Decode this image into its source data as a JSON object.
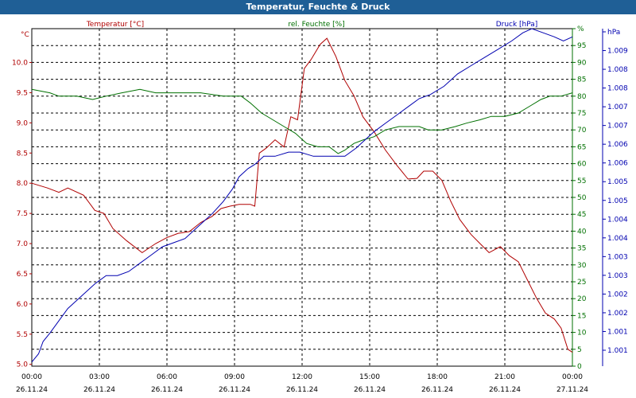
{
  "title": "Temperatur, Feuchte & Druck",
  "colors": {
    "title_bg": "#1f5f96",
    "temperature": "#b00000",
    "humidity": "#007000",
    "pressure": "#0000b0"
  },
  "chart_data": {
    "type": "line",
    "title": "Temperatur, Feuchte & Druck",
    "legend": [
      "Temperatur [°C]",
      "rel. Feuchte [%]",
      "Druck [hPa]"
    ],
    "x_tick_times": [
      "00:00",
      "03:00",
      "06:00",
      "09:00",
      "12:00",
      "15:00",
      "18:00",
      "21:00",
      "00:00"
    ],
    "x_tick_dates": [
      "26.11.24",
      "26.11.24",
      "26.11.24",
      "26.11.24",
      "26.11.24",
      "26.11.24",
      "26.11.24",
      "26.11.24",
      "27.11.24"
    ],
    "x_range_hours": [
      0,
      24
    ],
    "axes": {
      "temperature": {
        "unit": "°C",
        "range": [
          4.97,
          10.56
        ],
        "ticks": [
          "5.0",
          "5.5",
          "6.0",
          "6.5",
          "7.0",
          "7.5",
          "8.0",
          "8.5",
          "9.0",
          "9.5",
          "10.0"
        ]
      },
      "humidity": {
        "unit": "%",
        "range": [
          0,
          100
        ],
        "ticks": [
          "0",
          "5",
          "10",
          "15",
          "20",
          "25",
          "30",
          "35",
          "40",
          "45",
          "50",
          "55",
          "60",
          "65",
          "70",
          "75",
          "80",
          "85",
          "90",
          "95",
          "%"
        ]
      },
      "pressure": {
        "unit": "hPa",
        "range": [
          1000.9,
          1009.1
        ],
        "ticks": [
          "1.001",
          "1.001",
          "1.002",
          "1.002",
          "1.003",
          "1.003",
          "1.004",
          "1.004",
          "1.005",
          "1.005",
          "1.006",
          "1.006",
          "1.007",
          "1.007",
          "1.008",
          "1.008",
          "1.009",
          "hPa"
        ]
      }
    },
    "series": [
      {
        "name": "Temperatur [°C]",
        "axis": "temperature",
        "points": [
          [
            0,
            8.0
          ],
          [
            0.7,
            7.92
          ],
          [
            1.2,
            7.85
          ],
          [
            1.6,
            7.92
          ],
          [
            2.3,
            7.8
          ],
          [
            2.8,
            7.55
          ],
          [
            3.2,
            7.5
          ],
          [
            3.6,
            7.25
          ],
          [
            4.2,
            7.05
          ],
          [
            4.9,
            6.85
          ],
          [
            5.5,
            7.0
          ],
          [
            6.0,
            7.1
          ],
          [
            6.5,
            7.17
          ],
          [
            7.0,
            7.2
          ],
          [
            7.5,
            7.35
          ],
          [
            8.0,
            7.45
          ],
          [
            8.4,
            7.58
          ],
          [
            8.8,
            7.62
          ],
          [
            9.2,
            7.65
          ],
          [
            9.7,
            7.65
          ],
          [
            9.9,
            7.62
          ],
          [
            10.1,
            8.5
          ],
          [
            10.4,
            8.58
          ],
          [
            10.8,
            8.72
          ],
          [
            11.2,
            8.6
          ],
          [
            11.5,
            9.1
          ],
          [
            11.8,
            9.05
          ],
          [
            12.1,
            9.9
          ],
          [
            12.4,
            10.05
          ],
          [
            12.8,
            10.3
          ],
          [
            13.1,
            10.4
          ],
          [
            13.5,
            10.1
          ],
          [
            13.9,
            9.7
          ],
          [
            14.3,
            9.45
          ],
          [
            14.7,
            9.1
          ],
          [
            15.2,
            8.85
          ],
          [
            15.7,
            8.55
          ],
          [
            16.2,
            8.3
          ],
          [
            16.7,
            8.07
          ],
          [
            17.1,
            8.08
          ],
          [
            17.4,
            8.2
          ],
          [
            17.8,
            8.2
          ],
          [
            18.2,
            8.05
          ],
          [
            18.6,
            7.7
          ],
          [
            19.0,
            7.4
          ],
          [
            19.5,
            7.15
          ],
          [
            19.9,
            7.0
          ],
          [
            20.3,
            6.85
          ],
          [
            20.8,
            6.95
          ],
          [
            21.2,
            6.8
          ],
          [
            21.6,
            6.7
          ],
          [
            22.0,
            6.4
          ],
          [
            22.4,
            6.1
          ],
          [
            22.8,
            5.85
          ],
          [
            23.2,
            5.75
          ],
          [
            23.5,
            5.6
          ],
          [
            23.8,
            5.25
          ],
          [
            24.0,
            5.2
          ]
        ]
      },
      {
        "name": "rel. Feuchte [%]",
        "axis": "humidity",
        "points": [
          [
            0,
            82
          ],
          [
            0.8,
            81
          ],
          [
            1.2,
            80
          ],
          [
            2.0,
            80
          ],
          [
            2.7,
            79
          ],
          [
            3.3,
            80
          ],
          [
            4.0,
            81
          ],
          [
            4.8,
            82
          ],
          [
            5.5,
            81
          ],
          [
            6.5,
            81
          ],
          [
            7.5,
            81
          ],
          [
            8.5,
            80
          ],
          [
            9.3,
            80
          ],
          [
            9.7,
            78
          ],
          [
            10.2,
            75
          ],
          [
            10.7,
            73
          ],
          [
            11.2,
            71
          ],
          [
            11.7,
            69
          ],
          [
            12.2,
            66
          ],
          [
            12.7,
            65
          ],
          [
            13.2,
            65
          ],
          [
            13.6,
            63
          ],
          [
            13.9,
            64
          ],
          [
            14.3,
            66
          ],
          [
            14.7,
            67
          ],
          [
            15.2,
            68
          ],
          [
            15.7,
            70
          ],
          [
            16.3,
            71
          ],
          [
            16.8,
            71
          ],
          [
            17.2,
            71
          ],
          [
            17.6,
            70
          ],
          [
            18.2,
            70
          ],
          [
            18.8,
            71
          ],
          [
            19.3,
            72
          ],
          [
            19.9,
            73
          ],
          [
            20.4,
            74
          ],
          [
            21.0,
            74
          ],
          [
            21.6,
            75
          ],
          [
            22.1,
            77
          ],
          [
            22.6,
            79
          ],
          [
            23.0,
            80
          ],
          [
            23.5,
            80
          ],
          [
            24.0,
            81
          ]
        ]
      },
      {
        "name": "Druck [hPa]",
        "axis": "pressure",
        "points": [
          [
            0,
            1001.0
          ],
          [
            0.3,
            1001.2
          ],
          [
            0.5,
            1001.5
          ],
          [
            0.8,
            1001.7
          ],
          [
            1.2,
            1002.0
          ],
          [
            1.6,
            1002.3
          ],
          [
            2.2,
            1002.6
          ],
          [
            2.8,
            1002.9
          ],
          [
            3.3,
            1003.1
          ],
          [
            3.8,
            1003.1
          ],
          [
            4.3,
            1003.2
          ],
          [
            4.8,
            1003.4
          ],
          [
            5.3,
            1003.6
          ],
          [
            5.8,
            1003.8
          ],
          [
            6.3,
            1003.9
          ],
          [
            6.8,
            1004.0
          ],
          [
            7.2,
            1004.2
          ],
          [
            7.6,
            1004.4
          ],
          [
            8.0,
            1004.6
          ],
          [
            8.5,
            1004.9
          ],
          [
            8.9,
            1005.2
          ],
          [
            9.2,
            1005.5
          ],
          [
            9.6,
            1005.7
          ],
          [
            9.9,
            1005.8
          ],
          [
            10.3,
            1006.0
          ],
          [
            10.8,
            1006.0
          ],
          [
            11.4,
            1006.1
          ],
          [
            11.9,
            1006.1
          ],
          [
            12.5,
            1006.0
          ],
          [
            13.0,
            1006.0
          ],
          [
            13.4,
            1006.0
          ],
          [
            13.9,
            1006.0
          ],
          [
            14.4,
            1006.2
          ],
          [
            14.8,
            1006.4
          ],
          [
            15.2,
            1006.6
          ],
          [
            15.7,
            1006.8
          ],
          [
            16.2,
            1007.0
          ],
          [
            16.7,
            1007.2
          ],
          [
            17.2,
            1007.4
          ],
          [
            17.7,
            1007.5
          ],
          [
            18.3,
            1007.7
          ],
          [
            18.9,
            1008.0
          ],
          [
            19.5,
            1008.2
          ],
          [
            20.1,
            1008.4
          ],
          [
            20.7,
            1008.6
          ],
          [
            21.3,
            1008.8
          ],
          [
            21.8,
            1009.0
          ],
          [
            22.2,
            1009.1
          ],
          [
            22.7,
            1009.0
          ],
          [
            23.2,
            1008.9
          ],
          [
            23.6,
            1008.8
          ],
          [
            24.0,
            1008.9
          ]
        ]
      }
    ]
  }
}
